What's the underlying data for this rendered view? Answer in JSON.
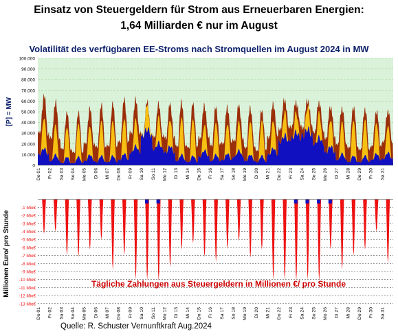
{
  "header": {
    "title_line1": "Einsatz von Steuergeldern für Strom aus Erneuerbaren Energien:",
    "title_line2": "1,64 Milliarden € nur im August",
    "chart_title": "Volatilität des verfügbaren EE-Stroms nach Stromquellen im August 2024 in MW",
    "source": "Quelle: R. Schuster Vernunftkraft Aug.2024"
  },
  "colors": {
    "top_background": "#dbf2da",
    "top_grid": "#8fcf8a",
    "wind": "#9a2f0a",
    "solar": "#f6bf12",
    "other_renewables": "#1010c0",
    "payments": "#ee1111",
    "annotation": "#cc0000",
    "bottom_grid": "#222222"
  },
  "chart_data": [
    {
      "type": "area",
      "ylabel": "[P] = MW",
      "ylim": [
        0,
        100000
      ],
      "y_ticks": [
        "0",
        "10.000",
        "20.000",
        "30.000",
        "40.000",
        "50.000",
        "60.000",
        "70.000",
        "80.000",
        "90.000",
        "100.000"
      ],
      "grid": true,
      "categories": [
        "Do 01",
        "Fr 02",
        "Sa 03",
        "So 04",
        "Mo 05",
        "Di 06",
        "Mi 07",
        "Do 08",
        "Fr 09",
        "Sa 10",
        "So 11",
        "Mo 12",
        "Di 13",
        "Mi 14",
        "Do 15",
        "Fr 16",
        "Sa 17",
        "So 18",
        "Mo 19",
        "Di 20",
        "Mi 21",
        "Do 22",
        "Fr 23",
        "Sa 24",
        "So 25",
        "Mo 26",
        "Di 27",
        "Mi 28",
        "Do 29",
        "Fr 30",
        "Sa 31"
      ],
      "series_stacked_daily": {
        "base_night": [
          30000,
          25000,
          15000,
          12000,
          20000,
          17000,
          18000,
          22000,
          30000,
          28000,
          27000,
          26000,
          18000,
          17000,
          26000,
          19000,
          21000,
          24000,
          17000,
          14000,
          27000,
          35000,
          37000,
          36000,
          32000,
          26000,
          20000,
          17000,
          15000,
          18000,
          22000
        ],
        "peak_day": [
          64000,
          58000,
          48000,
          48000,
          52000,
          55000,
          56000,
          60000,
          60000,
          58000,
          56000,
          56000,
          58000,
          57000,
          55000,
          54000,
          54000,
          56000,
          54000,
          52000,
          58000,
          62000,
          60000,
          62000,
          60000,
          56000,
          55000,
          56000,
          54000,
          52000,
          52000
        ],
        "lowest_blue_night": [
          10000,
          4000,
          2000,
          2000,
          4000,
          3000,
          3000,
          5000,
          12000,
          28000,
          15000,
          12000,
          4000,
          3000,
          8000,
          4000,
          5000,
          8000,
          4000,
          3000,
          10000,
          22000,
          25000,
          28000,
          20000,
          12000,
          5000,
          3000,
          3000,
          5000,
          6000
        ]
      }
    },
    {
      "type": "area",
      "ylabel": "Millionen Euro/ pro Stunde",
      "ylim": [
        0,
        -13
      ],
      "y_ticks": [
        "-1 Mio€",
        "-2 Mio€",
        "-3 Mio€",
        "-4 Mio€",
        "-5 Mio€",
        "-6 Mio€",
        "-7 Mio€",
        "-8 Mio€",
        "-9 Mio€",
        "-10 Mio€",
        "-11 Mio€",
        "-12 Mio€",
        "-13 Mio€"
      ],
      "grid": true,
      "annotation": "Tägliche Zahlungen aus Steuergeldern in Millionen €/ pro Stunde",
      "categories": [
        "Do 01",
        "Fr 02",
        "Sa 03",
        "So 04",
        "Mo 05",
        "Di 06",
        "Mi 07",
        "Do 08",
        "Fr 09",
        "Sa 10",
        "So 11",
        "Mo 12",
        "Di 13",
        "Mi 14",
        "Do 15",
        "Fr 16",
        "Sa 17",
        "So 18",
        "Mo 19",
        "Di 20",
        "Mi 21",
        "Do 22",
        "Fr 23",
        "Sa 24",
        "So 25",
        "Mo 26",
        "Di 27",
        "Mi 28",
        "Do 29",
        "Fr 30",
        "Sa 31"
      ],
      "daily_peak_payment_mio_eur": [
        4.3,
        4.0,
        7.0,
        7.2,
        6.3,
        5.0,
        8.8,
        7.0,
        10.0,
        10.1,
        10.2,
        8.5,
        6.3,
        5.5,
        7.2,
        7.8,
        6.2,
        5.2,
        7.3,
        6.3,
        10.0,
        10.1,
        10.2,
        10.0,
        10.2,
        6.3,
        8.8,
        7.0,
        6.3,
        4.0,
        8.0
      ]
    }
  ]
}
